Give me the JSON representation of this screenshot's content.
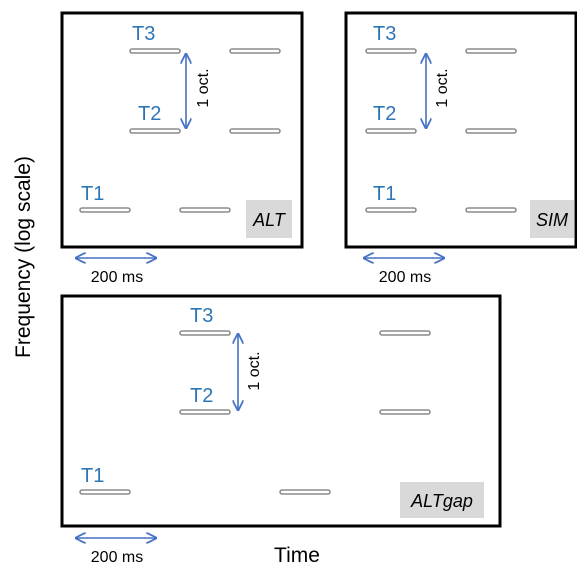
{
  "axes": {
    "y_label": "Frequency (log scale)",
    "x_label": "Time"
  },
  "colors": {
    "tone_labels": "#2e75b6",
    "arrows": "#4472c4",
    "tone_outline": "#8c8c8c",
    "condition_box": "#d9d9d9",
    "frame": "#000000"
  },
  "panels": [
    {
      "condition": "ALT",
      "tones": [
        "T1",
        "T2",
        "T3"
      ],
      "interval_label": "1 oct.",
      "scale_bar_label": "200 ms"
    },
    {
      "condition": "SIM",
      "tones": [
        "T1",
        "T2",
        "T3"
      ],
      "interval_label": "1 oct.",
      "scale_bar_label": "200 ms"
    },
    {
      "condition": "ALTgap",
      "tones": [
        "T1",
        "T2",
        "T3"
      ],
      "interval_label": "1 oct.",
      "scale_bar_label": "200 ms"
    }
  ]
}
